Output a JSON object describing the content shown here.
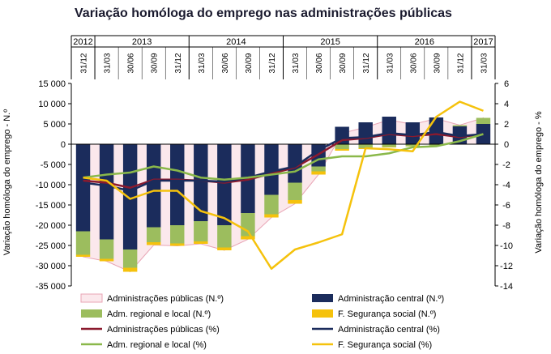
{
  "chart_data": {
    "type": "bar",
    "title": "Variação homóloga do emprego nas administrações públicas",
    "ylabel_left": "Variação homóloga do emprego - N.º",
    "ylabel_right": "Variação homóloga do emprego - %",
    "ylim_left": [
      -35000,
      15000
    ],
    "ylim_right": [
      -14,
      6
    ],
    "yticks_left": [
      15000,
      10000,
      5000,
      0,
      -5000,
      -10000,
      -15000,
      -20000,
      -25000,
      -30000,
      -35000
    ],
    "ytick_labels_left": [
      "15 000",
      "10 000",
      "5 000",
      "0",
      "-5 000",
      "-10 000",
      "-15 000",
      "-20 000",
      "-25 000",
      "-30 000",
      "-35 000"
    ],
    "yticks_right": [
      6,
      4,
      2,
      0,
      -2,
      -4,
      -6,
      -8,
      -10,
      -12,
      -14
    ],
    "years": [
      {
        "label": "2012",
        "span": 1
      },
      {
        "label": "2013",
        "span": 4
      },
      {
        "label": "2014",
        "span": 4
      },
      {
        "label": "2015",
        "span": 4
      },
      {
        "label": "2016",
        "span": 4
      },
      {
        "label": "2017",
        "span": 1
      }
    ],
    "categories": [
      "31/12",
      "31/03",
      "30/06",
      "30/09",
      "31/12",
      "31/03",
      "30/06",
      "30/09",
      "31/12",
      "31/03",
      "30/06",
      "30/09",
      "31/12",
      "31/03",
      "30/06",
      "30/09",
      "31/12",
      "31/03"
    ],
    "bar_series": [
      {
        "name": "Administração central (N.º)",
        "color": "#1b2c5c",
        "values": [
          -21500,
          -23500,
          -26000,
          -20500,
          -20000,
          -19000,
          -20000,
          -17000,
          -12500,
          -9500,
          -5500,
          4300,
          5400,
          6800,
          5400,
          6600,
          4400,
          5000
        ]
      },
      {
        "name": "Adm. regional e local (N.º)",
        "color": "#9cbd5e",
        "values": [
          -5800,
          -4800,
          -4500,
          -3700,
          -4500,
          -5000,
          -5500,
          -5700,
          -4800,
          -4300,
          -1200,
          -1200,
          -1000,
          -700,
          -500,
          -300,
          300,
          1500
        ]
      },
      {
        "name": "F. Segurança social  (N.º)",
        "color": "#f5c20c",
        "values": [
          -500,
          -600,
          -1000,
          -700,
          -600,
          -600,
          -700,
          -800,
          -800,
          -900,
          -800,
          -400,
          -200,
          -100,
          -50,
          0,
          0,
          0
        ]
      }
    ],
    "area_series": {
      "name": "Administrações públicas (N.º)",
      "fill": "#fbe8ec",
      "stroke": "#e8a4b4",
      "values": [
        -27800,
        -28900,
        -31500,
        -24900,
        -25100,
        -24600,
        -26200,
        -23500,
        -18100,
        -14700,
        -7500,
        2700,
        4200,
        6000,
        4900,
        6300,
        4700,
        6500
      ]
    },
    "line_series": [
      {
        "name": "Administrações públicas (%)",
        "color": "#8b1a2e",
        "values": [
          -3.6,
          -3.8,
          -4.3,
          -3.5,
          -3.5,
          -3.6,
          -3.8,
          -3.5,
          -2.9,
          -2.3,
          -1.0,
          0.4,
          0.6,
          1.0,
          0.8,
          1.0,
          0.7,
          1.0
        ]
      },
      {
        "name": "Administração central  (%)",
        "color": "#1b2c5c",
        "values": [
          -3.8,
          -4.1,
          -4.6,
          -3.6,
          -3.6,
          -3.6,
          -3.7,
          -3.3,
          -2.7,
          -2.2,
          -0.6,
          0.6,
          0.7,
          1.1,
          0.9,
          1.2,
          0.8,
          1.0
        ]
      },
      {
        "name": "Adm. regional e local (%)",
        "color": "#8ab84a",
        "values": [
          -3.3,
          -3.0,
          -2.8,
          -2.2,
          -2.6,
          -3.3,
          -3.5,
          -3.3,
          -3.0,
          -2.7,
          -1.5,
          -1.2,
          -1.2,
          -0.9,
          -0.3,
          -0.2,
          0.3,
          1.0
        ]
      },
      {
        "name": "F. Segurança social  (%)",
        "color": "#f5c20c",
        "values": [
          -3.3,
          -3.6,
          -5.4,
          -4.6,
          -4.6,
          -6.6,
          -7.3,
          -8.6,
          -12.3,
          -10.4,
          -9.7,
          -8.9,
          -0.4,
          -0.5,
          -0.7,
          2.7,
          4.2,
          3.3
        ]
      }
    ],
    "legend": [
      {
        "label": "Administrações públicas (N.º)",
        "kind": "area",
        "color": "#fbe8ec"
      },
      {
        "label": "Administração central (N.º)",
        "kind": "bar",
        "color": "#1b2c5c"
      },
      {
        "label": "Adm. regional e local (N.º)",
        "kind": "bar",
        "color": "#9cbd5e"
      },
      {
        "label": "F. Segurança social  (N.º)",
        "kind": "bar",
        "color": "#f5c20c"
      },
      {
        "label": "Administrações públicas (%)",
        "kind": "line",
        "color": "#8b1a2e"
      },
      {
        "label": "Administração central  (%)",
        "kind": "line",
        "color": "#1b2c5c"
      },
      {
        "label": "Adm. regional e local (%)",
        "kind": "line",
        "color": "#8ab84a"
      },
      {
        "label": "F. Segurança social  (%)",
        "kind": "line",
        "color": "#f5c20c"
      }
    ]
  }
}
